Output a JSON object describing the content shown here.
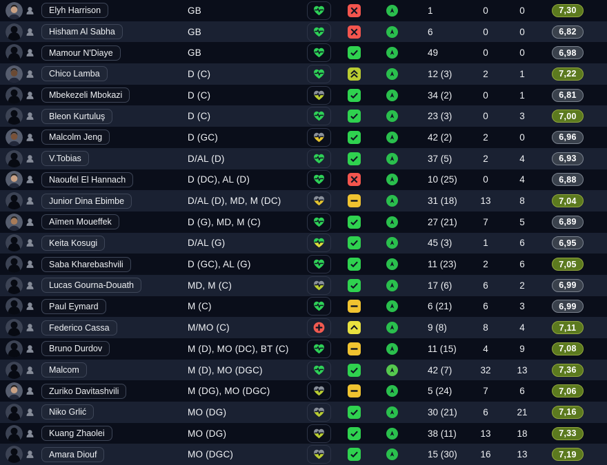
{
  "colors": {
    "row_dark": "#0a0e1a",
    "row_light": "#1a2132",
    "text": "#edeff2",
    "glyph_dark": "#101624",
    "condition_green": "#2ed157",
    "condition_gray": "#8a909a",
    "condition_yellow": "#e4c42f",
    "condition_lime": "#bacd31",
    "condition_green_split_bottom": "#dfdd3a",
    "injury_red": "#f25a50",
    "status_check_bg": "#2fd24f",
    "status_cross_bg": "#f3554e",
    "status_minus_bg": "#f0c330",
    "status_chevron_double_bg": "#b9cc31",
    "status_chevron_single_bg": "#e8e13f",
    "morale_up": "#2abf4d",
    "morale_up_light": "#55c94e",
    "rating_good_bg": "#5c7a1f",
    "rating_good_border": "#93a83d",
    "rating_neutral_bg": "#3a414c",
    "rating_neutral_border": "#7d8591",
    "photo_circle": "#3c4354",
    "photo_silhouette": "#070a12",
    "person_icon": "#858b98"
  },
  "icons": {
    "person": "person-bust-icon",
    "condition_ok": "heart-pulse-icon",
    "injury": "medical-cross-circle-icon",
    "status_available": "check-square-icon",
    "status_unavailable": "cross-square-icon",
    "status_neutral": "minus-square-icon",
    "status_improving": "chevron-up-square-icon",
    "status_improving_fast": "double-chevron-up-square-icon",
    "morale": "arrow-up-circle-icon"
  },
  "table": {
    "rows": [
      {
        "name": "Elyh Harrison",
        "position": "GB",
        "photo": "portrait",
        "photo_tone": "#c9a184",
        "condition": "green",
        "status": "cross",
        "morale": "up",
        "stats": [
          "1",
          "0",
          "0"
        ],
        "rating": "7,30",
        "rating_style": "good"
      },
      {
        "name": "Hisham Al Sabha",
        "position": "GB",
        "photo": "silhouette",
        "condition": "green",
        "status": "cross",
        "morale": "up",
        "stats": [
          "6",
          "0",
          "0"
        ],
        "rating": "6,82",
        "rating_style": "neutral"
      },
      {
        "name": "Mamour N'Diaye",
        "position": "GB",
        "photo": "silhouette",
        "condition": "green",
        "status": "check",
        "morale": "up",
        "stats": [
          "49",
          "0",
          "0"
        ],
        "rating": "6,98",
        "rating_style": "neutral"
      },
      {
        "name": "Chico Lamba",
        "position": "D (C)",
        "photo": "portrait",
        "photo_tone": "#6b4a33",
        "condition": "green",
        "status": "chevron-double",
        "morale": "up",
        "stats": [
          "12 (3)",
          "2",
          "1"
        ],
        "rating": "7,22",
        "rating_style": "good"
      },
      {
        "name": "Mbekezeli Mbokazi",
        "position": "D (C)",
        "photo": "silhouette",
        "condition": "gray-lime",
        "status": "check",
        "morale": "up",
        "stats": [
          "34 (2)",
          "0",
          "1"
        ],
        "rating": "6,81",
        "rating_style": "neutral"
      },
      {
        "name": "Bleon Kurtuluş",
        "position": "D (C)",
        "photo": "silhouette",
        "condition": "green",
        "status": "check",
        "morale": "up",
        "stats": [
          "23 (3)",
          "0",
          "3"
        ],
        "rating": "7,00",
        "rating_style": "good"
      },
      {
        "name": "Malcolm Jeng",
        "position": "D (GC)",
        "photo": "portrait",
        "photo_tone": "#7a5238",
        "condition": "gray-yellow",
        "status": "check",
        "morale": "up",
        "stats": [
          "42 (2)",
          "2",
          "0"
        ],
        "rating": "6,96",
        "rating_style": "neutral"
      },
      {
        "name": "V.Tobias",
        "position": "D/AL (D)",
        "photo": "silhouette",
        "condition": "green",
        "status": "check",
        "morale": "up",
        "stats": [
          "37 (5)",
          "2",
          "4"
        ],
        "rating": "6,93",
        "rating_style": "neutral"
      },
      {
        "name": "Naoufel El Hannach",
        "position": "D (DC), AL (D)",
        "photo": "portrait",
        "photo_tone": "#c9a184",
        "condition": "green",
        "status": "cross",
        "morale": "up",
        "stats": [
          "10 (25)",
          "0",
          "4"
        ],
        "rating": "6,88",
        "rating_style": "neutral"
      },
      {
        "name": "Junior Dina Ebimbe",
        "position": "D/AL (D), MD, M (DC)",
        "photo": "silhouette",
        "condition": "gray-yellow",
        "status": "minus",
        "morale": "up",
        "stats": [
          "31 (18)",
          "13",
          "8"
        ],
        "rating": "7,04",
        "rating_style": "good"
      },
      {
        "name": "Aïmen Moueffek",
        "position": "D (G), MD, M (C)",
        "photo": "portrait",
        "photo_tone": "#a87b58",
        "condition": "green",
        "status": "check",
        "morale": "up",
        "stats": [
          "27 (21)",
          "7",
          "5"
        ],
        "rating": "6,89",
        "rating_style": "neutral"
      },
      {
        "name": "Keita Kosugi",
        "position": "D/AL (G)",
        "photo": "silhouette",
        "condition": "green-yellow",
        "status": "check",
        "morale": "up",
        "stats": [
          "45 (3)",
          "1",
          "6"
        ],
        "rating": "6,95",
        "rating_style": "neutral"
      },
      {
        "name": "Saba Kharebashvili",
        "position": "D (GC), AL (G)",
        "photo": "silhouette",
        "condition": "green",
        "status": "check",
        "morale": "up",
        "stats": [
          "11 (23)",
          "2",
          "6"
        ],
        "rating": "7,05",
        "rating_style": "good"
      },
      {
        "name": "Lucas Gourna-Douath",
        "position": "MD, M (C)",
        "photo": "silhouette",
        "condition": "gray-lime",
        "status": "check",
        "morale": "up",
        "stats": [
          "17 (6)",
          "6",
          "2"
        ],
        "rating": "6,99",
        "rating_style": "neutral"
      },
      {
        "name": "Paul Eymard",
        "position": "M (C)",
        "photo": "silhouette",
        "condition": "green",
        "status": "minus",
        "morale": "up",
        "stats": [
          "6 (21)",
          "6",
          "3"
        ],
        "rating": "6,99",
        "rating_style": "neutral"
      },
      {
        "name": "Federico Cassa",
        "position": "M/MO (C)",
        "photo": "silhouette",
        "condition": "injured",
        "status": "chevron-single",
        "morale": "up",
        "stats": [
          "9 (8)",
          "8",
          "4"
        ],
        "rating": "7,11",
        "rating_style": "good"
      },
      {
        "name": "Bruno Durdov",
        "position": "M (D), MO (DC), BT (C)",
        "photo": "silhouette",
        "condition": "green",
        "status": "minus",
        "morale": "up",
        "stats": [
          "11 (15)",
          "4",
          "9"
        ],
        "rating": "7,08",
        "rating_style": "good"
      },
      {
        "name": "Malcom",
        "position": "M (D), MO (DGC)",
        "photo": "silhouette",
        "condition": "green",
        "status": "check",
        "morale": "up-light",
        "stats": [
          "42 (7)",
          "32",
          "13"
        ],
        "rating": "7,36",
        "rating_style": "good"
      },
      {
        "name": "Zuriko Davitashvili",
        "position": "M (DG), MO (DGC)",
        "photo": "portrait",
        "photo_tone": "#c9a184",
        "condition": "gray-lime",
        "status": "minus",
        "morale": "up",
        "stats": [
          "5 (24)",
          "7",
          "6"
        ],
        "rating": "7,06",
        "rating_style": "good"
      },
      {
        "name": "Niko Grlić",
        "position": "MO (DG)",
        "photo": "silhouette",
        "condition": "gray-lime",
        "status": "check",
        "morale": "up",
        "stats": [
          "30 (21)",
          "6",
          "21"
        ],
        "rating": "7,16",
        "rating_style": "good"
      },
      {
        "name": "Kuang Zhaolei",
        "position": "MO (DG)",
        "photo": "silhouette",
        "condition": "gray-lime",
        "status": "check",
        "morale": "up",
        "stats": [
          "38 (11)",
          "13",
          "18"
        ],
        "rating": "7,33",
        "rating_style": "good"
      },
      {
        "name": "Amara Diouf",
        "position": "MO (DGC)",
        "photo": "silhouette",
        "condition": "gray-lime",
        "status": "check",
        "morale": "up",
        "stats": [
          "15 (30)",
          "16",
          "13"
        ],
        "rating": "7,19",
        "rating_style": "good"
      }
    ]
  }
}
